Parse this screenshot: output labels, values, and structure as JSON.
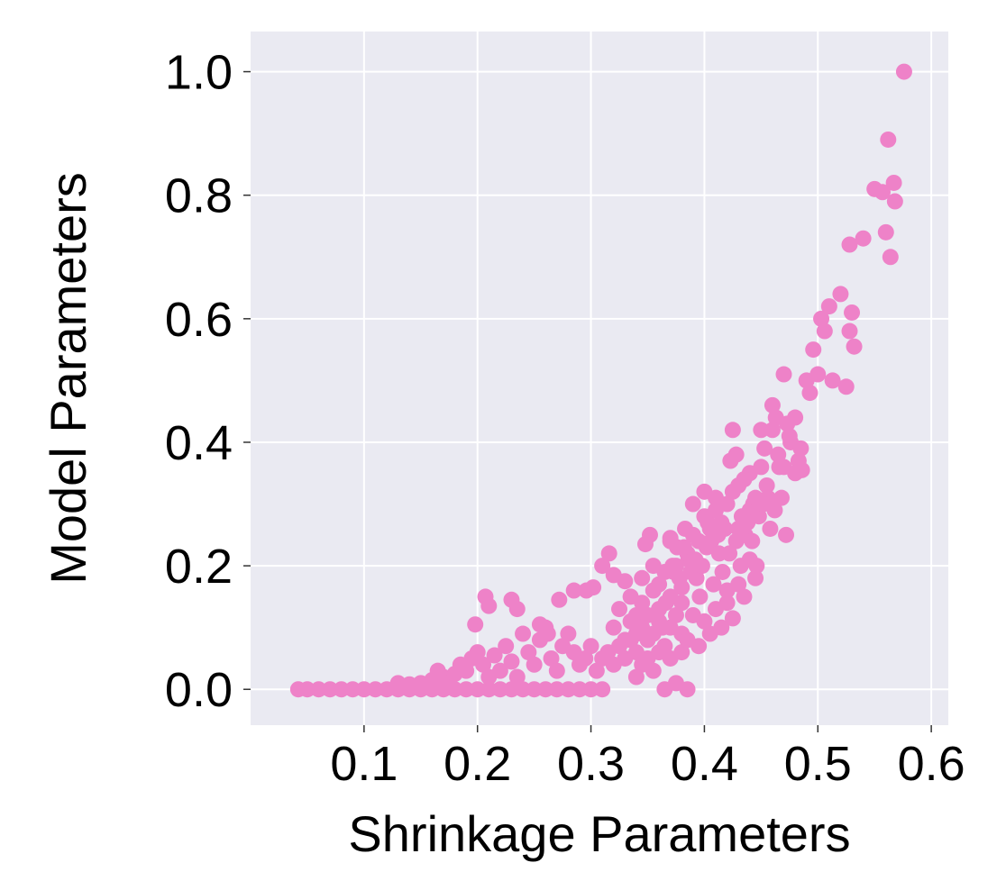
{
  "chart_data": {
    "type": "scatter",
    "title": "",
    "xlabel": "Shrinkage Parameters",
    "ylabel": "Model Parameters",
    "xlim": [
      0.0,
      0.615
    ],
    "ylim": [
      -0.058,
      1.065
    ],
    "xticks": [
      {
        "value": 0.1,
        "label": "0.1"
      },
      {
        "value": 0.2,
        "label": "0.2"
      },
      {
        "value": 0.3,
        "label": "0.3"
      },
      {
        "value": 0.4,
        "label": "0.4"
      },
      {
        "value": 0.5,
        "label": "0.5"
      },
      {
        "value": 0.6,
        "label": "0.6"
      }
    ],
    "yticks": [
      {
        "value": 0.0,
        "label": "0.0"
      },
      {
        "value": 0.2,
        "label": "0.2"
      },
      {
        "value": 0.4,
        "label": "0.4"
      },
      {
        "value": 0.6,
        "label": "0.6"
      },
      {
        "value": 0.8,
        "label": "0.8"
      },
      {
        "value": 1.0,
        "label": "1.0"
      }
    ],
    "grid": true,
    "colors": {
      "background": "#eaeaf2",
      "grid": "#ffffff",
      "points": "#ee82c8"
    },
    "series": [
      {
        "points": [
          [
            0.042,
            0.0
          ],
          [
            0.05,
            0.0
          ],
          [
            0.06,
            0.0
          ],
          [
            0.07,
            0.0
          ],
          [
            0.08,
            0.0
          ],
          [
            0.09,
            0.0
          ],
          [
            0.1,
            0.0
          ],
          [
            0.11,
            0.0
          ],
          [
            0.12,
            0.0
          ],
          [
            0.13,
            0.0
          ],
          [
            0.14,
            0.0
          ],
          [
            0.15,
            0.0
          ],
          [
            0.16,
            0.0
          ],
          [
            0.17,
            0.0
          ],
          [
            0.18,
            0.0
          ],
          [
            0.19,
            0.0
          ],
          [
            0.2,
            0.0
          ],
          [
            0.21,
            0.0
          ],
          [
            0.22,
            0.0
          ],
          [
            0.23,
            0.0
          ],
          [
            0.24,
            0.0
          ],
          [
            0.25,
            0.0
          ],
          [
            0.26,
            0.0
          ],
          [
            0.27,
            0.0
          ],
          [
            0.28,
            0.0
          ],
          [
            0.29,
            0.0
          ],
          [
            0.3,
            0.0
          ],
          [
            0.31,
            0.0
          ],
          [
            0.13,
            0.01
          ],
          [
            0.14,
            0.008
          ],
          [
            0.15,
            0.01
          ],
          [
            0.16,
            0.015
          ],
          [
            0.165,
            0.03
          ],
          [
            0.17,
            0.02
          ],
          [
            0.175,
            0.01
          ],
          [
            0.18,
            0.025
          ],
          [
            0.185,
            0.04
          ],
          [
            0.19,
            0.03
          ],
          [
            0.195,
            0.05
          ],
          [
            0.2,
            0.06
          ],
          [
            0.205,
            0.04
          ],
          [
            0.21,
            0.02
          ],
          [
            0.215,
            0.055
          ],
          [
            0.22,
            0.03
          ],
          [
            0.225,
            0.07
          ],
          [
            0.23,
            0.045
          ],
          [
            0.235,
            0.02
          ],
          [
            0.24,
            0.09
          ],
          [
            0.245,
            0.06
          ],
          [
            0.25,
            0.04
          ],
          [
            0.255,
            0.08
          ],
          [
            0.26,
            0.1
          ],
          [
            0.265,
            0.05
          ],
          [
            0.27,
            0.03
          ],
          [
            0.275,
            0.07
          ],
          [
            0.28,
            0.09
          ],
          [
            0.285,
            0.06
          ],
          [
            0.29,
            0.04
          ],
          [
            0.295,
            0.05
          ],
          [
            0.3,
            0.07
          ],
          [
            0.305,
            0.03
          ],
          [
            0.31,
            0.05
          ],
          [
            0.315,
            0.06
          ],
          [
            0.32,
            0.04
          ],
          [
            0.198,
            0.105
          ],
          [
            0.207,
            0.15
          ],
          [
            0.21,
            0.135
          ],
          [
            0.23,
            0.145
          ],
          [
            0.235,
            0.13
          ],
          [
            0.255,
            0.105
          ],
          [
            0.262,
            0.09
          ],
          [
            0.272,
            0.145
          ],
          [
            0.285,
            0.16
          ],
          [
            0.296,
            0.16
          ],
          [
            0.302,
            0.165
          ],
          [
            0.31,
            0.2
          ],
          [
            0.316,
            0.22
          ],
          [
            0.32,
            0.185
          ],
          [
            0.325,
            0.13
          ],
          [
            0.33,
            0.175
          ],
          [
            0.335,
            0.15
          ],
          [
            0.34,
            0.12
          ],
          [
            0.345,
            0.18
          ],
          [
            0.348,
            0.235
          ],
          [
            0.352,
            0.25
          ],
          [
            0.355,
            0.2
          ],
          [
            0.36,
            0.17
          ],
          [
            0.363,
            0.1
          ],
          [
            0.366,
            0.14
          ],
          [
            0.37,
            0.245
          ],
          [
            0.373,
            0.19
          ],
          [
            0.376,
            0.23
          ],
          [
            0.38,
            0.165
          ],
          [
            0.383,
            0.26
          ],
          [
            0.386,
            0.21
          ],
          [
            0.39,
            0.3
          ],
          [
            0.393,
            0.18
          ],
          [
            0.396,
            0.15
          ],
          [
            0.4,
            0.32
          ],
          [
            0.403,
            0.27
          ],
          [
            0.406,
            0.24
          ],
          [
            0.41,
            0.31
          ],
          [
            0.413,
            0.22
          ],
          [
            0.416,
            0.19
          ],
          [
            0.42,
            0.16
          ],
          [
            0.423,
            0.37
          ],
          [
            0.425,
            0.42
          ],
          [
            0.428,
            0.38
          ],
          [
            0.43,
            0.33
          ],
          [
            0.433,
            0.28
          ],
          [
            0.436,
            0.25
          ],
          [
            0.44,
            0.35
          ],
          [
            0.443,
            0.3
          ],
          [
            0.446,
            0.2
          ],
          [
            0.45,
            0.42
          ],
          [
            0.453,
            0.39
          ],
          [
            0.456,
            0.31
          ],
          [
            0.46,
            0.46
          ],
          [
            0.463,
            0.44
          ],
          [
            0.466,
            0.36
          ],
          [
            0.47,
            0.51
          ],
          [
            0.473,
            0.43
          ],
          [
            0.476,
            0.4
          ],
          [
            0.48,
            0.44
          ],
          [
            0.483,
            0.37
          ],
          [
            0.486,
            0.355
          ],
          [
            0.49,
            0.5
          ],
          [
            0.493,
            0.48
          ],
          [
            0.496,
            0.55
          ],
          [
            0.5,
            0.51
          ],
          [
            0.503,
            0.6
          ],
          [
            0.506,
            0.58
          ],
          [
            0.51,
            0.62
          ],
          [
            0.513,
            0.5
          ],
          [
            0.52,
            0.64
          ],
          [
            0.525,
            0.49
          ],
          [
            0.528,
            0.58
          ],
          [
            0.53,
            0.61
          ],
          [
            0.532,
            0.555
          ],
          [
            0.528,
            0.72
          ],
          [
            0.54,
            0.73
          ],
          [
            0.55,
            0.81
          ],
          [
            0.557,
            0.805
          ],
          [
            0.56,
            0.74
          ],
          [
            0.562,
            0.89
          ],
          [
            0.564,
            0.7
          ],
          [
            0.567,
            0.82
          ],
          [
            0.568,
            0.79
          ],
          [
            0.576,
            1.0
          ],
          [
            0.34,
            0.06
          ],
          [
            0.345,
            0.04
          ],
          [
            0.35,
            0.08
          ],
          [
            0.355,
            0.03
          ],
          [
            0.36,
            0.06
          ],
          [
            0.365,
            0.0
          ],
          [
            0.37,
            0.05
          ],
          [
            0.375,
            0.01
          ],
          [
            0.38,
            0.09
          ],
          [
            0.385,
            0.0
          ],
          [
            0.39,
            0.12
          ],
          [
            0.395,
            0.07
          ],
          [
            0.4,
            0.11
          ],
          [
            0.405,
            0.09
          ],
          [
            0.41,
            0.13
          ],
          [
            0.415,
            0.1
          ],
          [
            0.42,
            0.14
          ],
          [
            0.425,
            0.115
          ],
          [
            0.43,
            0.17
          ],
          [
            0.435,
            0.15
          ],
          [
            0.44,
            0.21
          ],
          [
            0.445,
            0.18
          ],
          [
            0.33,
            0.08
          ],
          [
            0.335,
            0.11
          ],
          [
            0.34,
            0.09
          ],
          [
            0.345,
            0.14
          ],
          [
            0.35,
            0.12
          ],
          [
            0.355,
            0.16
          ],
          [
            0.36,
            0.13
          ],
          [
            0.365,
            0.19
          ],
          [
            0.37,
            0.15
          ],
          [
            0.375,
            0.2
          ],
          [
            0.38,
            0.14
          ],
          [
            0.385,
            0.22
          ],
          [
            0.39,
            0.25
          ],
          [
            0.395,
            0.24
          ],
          [
            0.4,
            0.28
          ],
          [
            0.405,
            0.26
          ],
          [
            0.41,
            0.29
          ],
          [
            0.415,
            0.27
          ],
          [
            0.42,
            0.3
          ],
          [
            0.425,
            0.32
          ],
          [
            0.43,
            0.26
          ],
          [
            0.435,
            0.34
          ],
          [
            0.44,
            0.29
          ],
          [
            0.445,
            0.31
          ],
          [
            0.455,
            0.33
          ],
          [
            0.465,
            0.38
          ],
          [
            0.475,
            0.41
          ],
          [
            0.485,
            0.39
          ],
          [
            0.45,
            0.36
          ],
          [
            0.46,
            0.42
          ],
          [
            0.47,
            0.36
          ],
          [
            0.48,
            0.35
          ],
          [
            0.37,
            0.24
          ],
          [
            0.372,
            0.2
          ],
          [
            0.378,
            0.18
          ],
          [
            0.382,
            0.23
          ],
          [
            0.388,
            0.19
          ],
          [
            0.392,
            0.21
          ],
          [
            0.398,
            0.2
          ],
          [
            0.402,
            0.23
          ],
          [
            0.408,
            0.17
          ],
          [
            0.412,
            0.25
          ],
          [
            0.418,
            0.26
          ],
          [
            0.422,
            0.22
          ],
          [
            0.428,
            0.24
          ],
          [
            0.432,
            0.2
          ],
          [
            0.438,
            0.27
          ],
          [
            0.442,
            0.24
          ],
          [
            0.448,
            0.28
          ],
          [
            0.452,
            0.3
          ],
          [
            0.458,
            0.26
          ],
          [
            0.462,
            0.29
          ],
          [
            0.468,
            0.31
          ],
          [
            0.472,
            0.25
          ],
          [
            0.32,
            0.1
          ],
          [
            0.325,
            0.07
          ],
          [
            0.33,
            0.05
          ],
          [
            0.335,
            0.08
          ],
          [
            0.34,
            0.02
          ],
          [
            0.345,
            0.1
          ],
          [
            0.35,
            0.05
          ],
          [
            0.355,
            0.09
          ],
          [
            0.36,
            0.11
          ],
          [
            0.365,
            0.07
          ],
          [
            0.37,
            0.1
          ],
          [
            0.375,
            0.12
          ],
          [
            0.38,
            0.06
          ],
          [
            0.385,
            0.08
          ]
        ]
      }
    ]
  }
}
